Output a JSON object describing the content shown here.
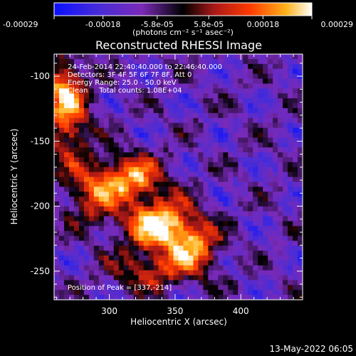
{
  "chart_data": {
    "type": "heatmap",
    "title": "Reconstructed RHESSI Image",
    "xlabel": "Heliocentric X (arcsec)",
    "ylabel": "Heliocentric Y (arcsec)",
    "xlim": [
      258,
      447
    ],
    "ylim": [
      -272,
      -83
    ],
    "x_ticks": [
      300,
      350,
      400
    ],
    "y_ticks": [
      -100,
      -150,
      -200,
      -250
    ],
    "colorbar": {
      "ticks": [
        -0.00029,
        -0.00018,
        -5.8e-05,
        5.8e-05,
        0.00018,
        0.00029
      ],
      "tick_labels": [
        "-0.00029",
        "-0.00018",
        "-5.8e-05",
        "5.8e-05",
        "0.00018",
        "0.00029"
      ],
      "label": "(photons cm⁻² s⁻¹ asec⁻²)",
      "range": [
        -0.00029,
        0.00029
      ]
    },
    "info_lines": [
      "24-Feb-2014 22:40:40.000 to 22:46:40.000",
      "Detectors: 3F 4F 5F 6F 7F 8F, Att 0",
      "Energy Range: 25.0 - 50.0 keV",
      "Clean     Total counts: 1.08E+04"
    ],
    "peak_label": "Position of Peak = [337,-214]",
    "sources": [
      {
        "x": 337,
        "y": -214,
        "peak": 0.00029,
        "sx": 18,
        "sy": 14
      },
      {
        "x": 318,
        "y": -178,
        "peak": 0.00021,
        "sx": 16,
        "sy": 12
      },
      {
        "x": 288,
        "y": -190,
        "peak": 0.00014,
        "sx": 14,
        "sy": 16
      },
      {
        "x": 364,
        "y": -232,
        "peak": 0.00019,
        "sx": 14,
        "sy": 14
      },
      {
        "x": 268,
        "y": -135,
        "peak": 0.00017,
        "sx": 12,
        "sy": 22
      },
      {
        "x": 265,
        "y": -105,
        "peak": 0.00012,
        "sx": 10,
        "sy": 14
      },
      {
        "x": 330,
        "y": -250,
        "peak": 0.0001,
        "sx": 20,
        "sy": 10
      }
    ]
  },
  "footer": {
    "timestamp": "13-May-2022 06:05"
  }
}
